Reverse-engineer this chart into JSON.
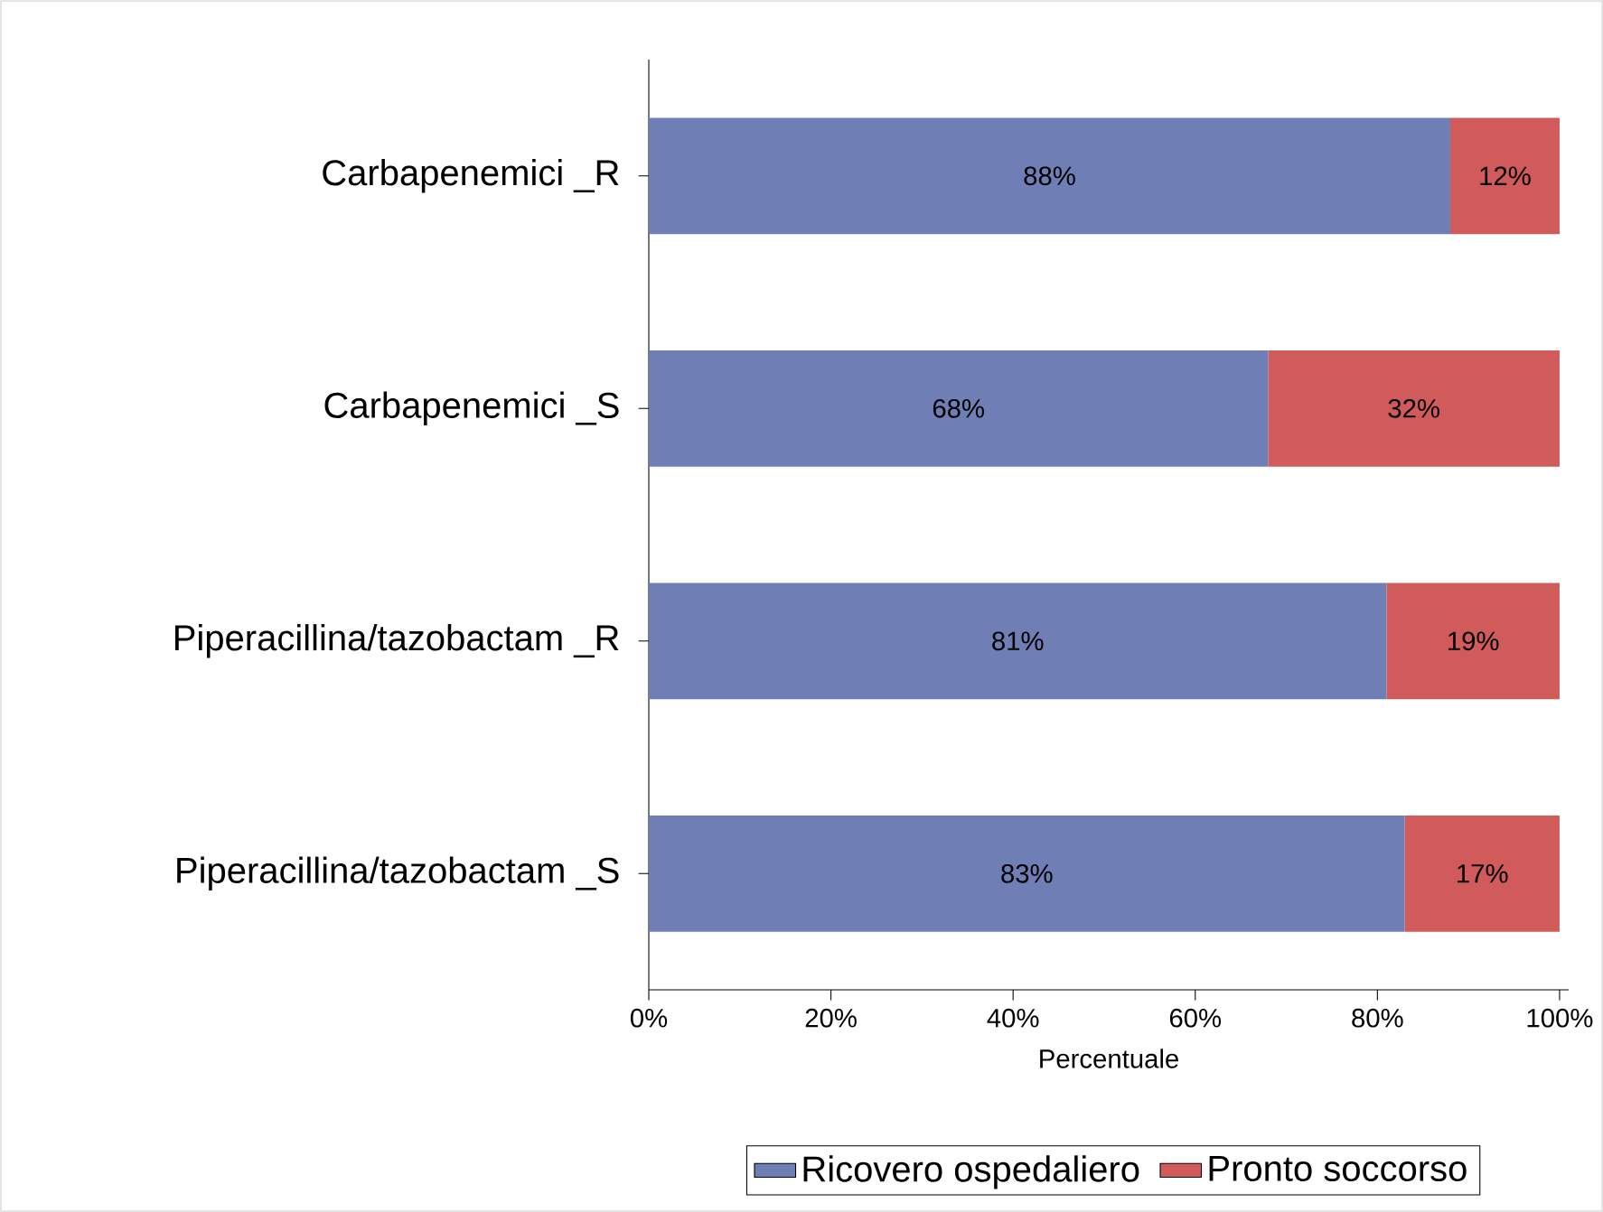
{
  "chart_data": {
    "type": "bar",
    "orientation": "horizontal",
    "stacked": true,
    "xlabel": "Percentuale",
    "categories": [
      "Carbapenemici _R",
      "Carbapenemici _S",
      "Piperacillina/tazobactam _R",
      "Piperacillina/tazobactam _S"
    ],
    "series": [
      {
        "name": "Ricovero ospedaliero",
        "color": "#6f7fb5",
        "values": [
          88,
          68,
          81,
          83
        ],
        "value_labels": [
          "88%",
          "68%",
          "81%",
          "83%"
        ]
      },
      {
        "name": "Pronto soccorso",
        "color": "#d15b5a",
        "values": [
          12,
          32,
          19,
          17
        ],
        "value_labels": [
          "12%",
          "32%",
          "19%",
          "17%"
        ]
      }
    ],
    "xlim": [
      0,
      101
    ],
    "xticks": [
      {
        "value": 0,
        "label": "0%"
      },
      {
        "value": 20,
        "label": "20%"
      },
      {
        "value": 40,
        "label": "40%"
      },
      {
        "value": 60,
        "label": "60%"
      },
      {
        "value": 80,
        "label": "80%"
      },
      {
        "value": 100,
        "label": "100%"
      }
    ],
    "grid": false,
    "legend": "bottom"
  }
}
